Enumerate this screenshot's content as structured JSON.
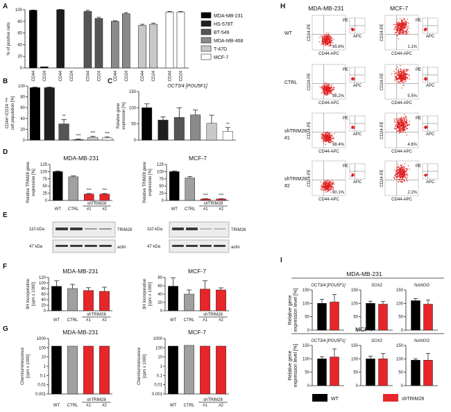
{
  "panel_letters": {
    "A": "A",
    "B": "B",
    "C": "C",
    "D": "D",
    "E": "E",
    "F": "F",
    "G": "G",
    "H": "H",
    "I": "I"
  },
  "colors": {
    "wt": "#000000",
    "ctrl": "#a0a0a0",
    "sh": "#e8262a"
  },
  "panelA": {
    "ylabel": "% of positive cells",
    "legend": [
      "MDA-MB-231",
      "HS-578T",
      "BT-549",
      "MDA-MB-468",
      "T-47D",
      "MCF-7"
    ],
    "legend_colors": [
      "#000000",
      "#1e1e1e",
      "#555555",
      "#8a8a8a",
      "#c8c8c8",
      "#ffffff"
    ],
    "marker_labels": [
      "CD44",
      "CD24"
    ]
  },
  "panelB": {
    "ylabel1": "CD44⁺/CD24⁻ˡᵒʷ",
    "ylabel2": "cell population [%]",
    "sig": [
      "**",
      "***",
      "***",
      "***"
    ]
  },
  "panelC": {
    "title": "OCT3/4 [POU5F1]",
    "ylabel1": "Relative gene",
    "ylabel2": "expression [%]",
    "sig": "**"
  },
  "panelD": {
    "left_title": "MDA-MB-231",
    "right_title": "MCF-7",
    "ylabel1": "Relative TRIM28 gene",
    "ylabel2": "expression [%]",
    "sig": "***"
  },
  "panelE": {
    "kda110": "110 kDa",
    "kda47": "47 kDa",
    "trim28": "TRIM28",
    "actin": "actin"
  },
  "panelF": {
    "left_title": "MDA-MB-231",
    "right_title": "MCF-7",
    "ylabel1": "3H Incorporation",
    "ylabel2": "[cpm x 1000]"
  },
  "panelG": {
    "left_title": "MDA-MB-231",
    "right_title": "MCF-7",
    "ylabel": "Chemiluminescence",
    "yunit": "[cpm x 1000]"
  },
  "x_labels": {
    "wt": "WT",
    "ctrl": "CTRL",
    "sh": "shTRIM28",
    "r1": "#1",
    "r2": "#2"
  },
  "panelH": {
    "col1": "MDA-MB-231",
    "col2": "MCF-7",
    "rows": [
      "WT",
      "CTRL",
      "shTRIM28\n#1",
      "shTRIM28\n#2"
    ],
    "xaxis": "CD44-APC",
    "yaxis": "CD24-PE",
    "inset_x": "APC",
    "inset_y": "PE",
    "pct_mda": [
      "95.6%",
      "98.2%",
      "98.4%",
      "90.1%"
    ],
    "pct_mcf": [
      "1.1%",
      "5.5%",
      "4.6%",
      "2.2%"
    ]
  },
  "panelI": {
    "top_title": "MDA-MB-231",
    "bottom_title": "MCF-7",
    "genes": [
      "OCT3/4 [POU5F1]",
      "SOX2",
      "NANOG"
    ],
    "ylabel1": "Relative gene",
    "ylabel2": "expression level [%]",
    "legend_wt": "WT",
    "legend_sh": "shTRIM28"
  },
  "chart_data": [
    {
      "id": "A",
      "type": "bar",
      "title": "",
      "ylabel": "% of positive cells",
      "ylim": [
        0,
        100
      ],
      "yticks": [
        0,
        20,
        40,
        60,
        80,
        100
      ],
      "categories": [
        "MDA-MB-231",
        "HS-578T",
        "BT-549",
        "MDA-MB-468",
        "T-47D",
        "MCF-7"
      ],
      "series": [
        {
          "name": "CD44",
          "values": [
            99,
            100,
            97,
            80,
            73,
            96
          ]
        },
        {
          "name": "CD24",
          "values": [
            2,
            0,
            85,
            93,
            75,
            96
          ]
        }
      ],
      "errors": [
        [
          0.5,
          0
        ],
        [
          0.5,
          0
        ],
        [
          2,
          2
        ],
        [
          1,
          2
        ],
        [
          2,
          2
        ],
        [
          1,
          1
        ]
      ]
    },
    {
      "id": "B",
      "type": "bar",
      "ylabel": "CD44+/CD24-/low cell population [%]",
      "ylim": [
        0,
        100
      ],
      "yticks": [
        0,
        20,
        40,
        60,
        80,
        100
      ],
      "categories": [
        "MDA-MB-231",
        "HS-578T",
        "BT-549",
        "MDA-MB-468",
        "T-47D",
        "MCF-7"
      ],
      "values": [
        97,
        97,
        30,
        1,
        5,
        4
      ],
      "errors": [
        1,
        1,
        8,
        1,
        2,
        2
      ]
    },
    {
      "id": "C",
      "type": "bar",
      "title": "OCT3/4 [POU5F1]",
      "ylabel": "Relative gene expression [%]",
      "ylim": [
        0,
        150
      ],
      "yticks": [
        0,
        50,
        100,
        150
      ],
      "categories": [
        "MDA-MB-231",
        "HS-578T",
        "BT-549",
        "MDA-MB-468",
        "T-47D",
        "MCF-7"
      ],
      "values": [
        100,
        62,
        70,
        78,
        52,
        27
      ],
      "errors": [
        12,
        10,
        30,
        15,
        25,
        12
      ]
    },
    {
      "id": "D-left",
      "type": "bar",
      "title": "MDA-MB-231",
      "ylabel": "Relative TRIM28 gene expression [%]",
      "ylim": [
        0,
        125
      ],
      "yticks": [
        0,
        25,
        50,
        75,
        100,
        125
      ],
      "categories": [
        "WT",
        "CTRL",
        "shTRIM28 #1",
        "shTRIM28 #2"
      ],
      "values": [
        100,
        82,
        22,
        22
      ],
      "errors": [
        2,
        3,
        2,
        2
      ]
    },
    {
      "id": "D-right",
      "type": "bar",
      "title": "MCF-7",
      "ylabel": "Relative TRIM28 gene expression [%]",
      "ylim": [
        0,
        125
      ],
      "yticks": [
        0,
        25,
        50,
        75,
        100,
        125
      ],
      "categories": [
        "WT",
        "CTRL",
        "shTRIM28 #1",
        "shTRIM28 #2"
      ],
      "values": [
        100,
        78,
        5,
        5
      ],
      "errors": [
        2,
        5,
        1,
        1
      ]
    },
    {
      "id": "F-left",
      "type": "bar",
      "title": "MDA-MB-231",
      "ylabel": "3H Incorporation [cpm x 1000]",
      "ylim": [
        0,
        120
      ],
      "yticks": [
        0,
        20,
        40,
        60,
        80,
        100,
        120
      ],
      "categories": [
        "WT",
        "CTRL",
        "shTRIM28 #1",
        "shTRIM28 #2"
      ],
      "values": [
        88,
        80,
        73,
        70
      ],
      "errors": [
        20,
        15,
        10,
        15
      ]
    },
    {
      "id": "F-right",
      "type": "bar",
      "title": "MCF-7",
      "ylabel": "3H Incorporation [cpm x 1000]",
      "ylim": [
        0,
        80
      ],
      "yticks": [
        0,
        20,
        40,
        60,
        80
      ],
      "categories": [
        "WT",
        "CTRL",
        "shTRIM28 #1",
        "shTRIM28 #2"
      ],
      "values": [
        59,
        40,
        52,
        50
      ],
      "errors": [
        20,
        10,
        20,
        5
      ]
    },
    {
      "id": "G-left",
      "type": "bar",
      "title": "MDA-MB-231",
      "ylabel": "Chemiluminescence [cpm x 1000]",
      "yscale": "log",
      "ylim": [
        0.001,
        1000
      ],
      "yticks": [
        1000,
        100,
        10,
        1,
        0.1,
        0.01,
        0.001
      ],
      "categories": [
        "WT",
        "CTRL",
        "shTRIM28 #1",
        "shTRIM28 #2"
      ],
      "values": [
        150,
        150,
        150,
        150
      ]
    },
    {
      "id": "G-right",
      "type": "bar",
      "title": "MCF-7",
      "ylabel": "Chemiluminescence [cpm x 1000]",
      "yscale": "log",
      "ylim": [
        0.001,
        1000
      ],
      "yticks": [
        1000,
        100,
        10,
        1,
        0.1,
        0.01,
        0.001
      ],
      "categories": [
        "WT",
        "CTRL",
        "shTRIM28 #1",
        "shTRIM28 #2"
      ],
      "values": [
        150,
        180,
        150,
        150
      ]
    },
    {
      "id": "I-MDA",
      "type": "bar",
      "title": "MDA-MB-231",
      "ylabel": "Relative gene expression level [%]",
      "ylim": [
        0,
        150
      ],
      "yticks": [
        0,
        50,
        100,
        150
      ],
      "genes": [
        "OCT3/4 [POU5F1]",
        "SOX2",
        "NANOG"
      ],
      "series": [
        {
          "name": "WT",
          "values": [
            100,
            100,
            110
          ],
          "errors": [
            15,
            8,
            8
          ]
        },
        {
          "name": "shTRIM28",
          "values": [
            105,
            97,
            97
          ],
          "errors": [
            28,
            10,
            15
          ]
        }
      ]
    },
    {
      "id": "I-MCF",
      "type": "bar",
      "title": "MCF-7",
      "ylabel": "Relative gene expression level [%]",
      "ylim": [
        0,
        150
      ],
      "yticks": [
        0,
        50,
        100,
        150
      ],
      "genes": [
        "OCT3/4 [POU5F1]",
        "SOX2",
        "NANOG"
      ],
      "series": [
        {
          "name": "WT",
          "values": [
            100,
            100,
            95
          ],
          "errors": [
            8,
            10,
            5
          ]
        },
        {
          "name": "shTRIM28",
          "values": [
            107,
            100,
            95
          ],
          "errors": [
            30,
            20,
            25
          ]
        }
      ]
    }
  ]
}
